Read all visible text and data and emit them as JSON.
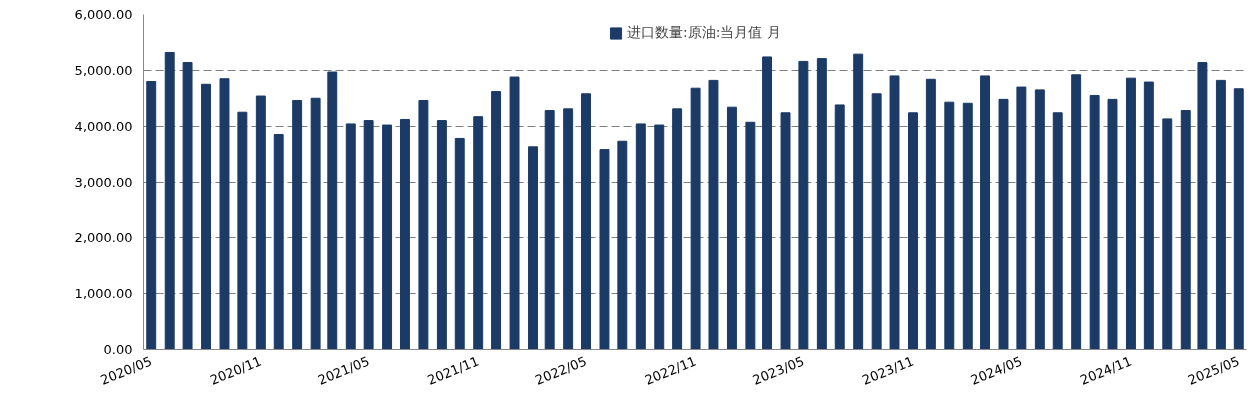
{
  "chart_data": {
    "type": "bar",
    "x": [
      "2020-05",
      "2020-06",
      "2020-07",
      "2020-08",
      "2020-09",
      "2020-10",
      "2020-11",
      "2020-12",
      "2021-01",
      "2021-02",
      "2021-03",
      "2021-04",
      "2021-05",
      "2021-06",
      "2021-07",
      "2021-08",
      "2021-09",
      "2021-10",
      "2021-11",
      "2021-12",
      "2022-01",
      "2022-02",
      "2022-03",
      "2022-04",
      "2022-05",
      "2022-06",
      "2022-07",
      "2022-08",
      "2022-09",
      "2022-10",
      "2022-11",
      "2022-12",
      "2023-01",
      "2023-02",
      "2023-03",
      "2023-04",
      "2023-05",
      "2023-06",
      "2023-07",
      "2023-08",
      "2023-09",
      "2023-10",
      "2023-11",
      "2023-12",
      "2024-01",
      "2024-02",
      "2024-03",
      "2024-04",
      "2024-05",
      "2024-06",
      "2024-07",
      "2024-08",
      "2024-09",
      "2024-10",
      "2024-11",
      "2024-12",
      "2025-01",
      "2025-02",
      "2025-03",
      "2025-04",
      "2025-05"
    ],
    "series": [
      {
        "name": "进口数量:原油:当月值 月",
        "color": "#1b3a66",
        "values": [
          4800,
          5320,
          5140,
          4750,
          4850,
          4250,
          4540,
          3850,
          4460,
          4500,
          4970,
          4040,
          4100,
          4020,
          4120,
          4460,
          4100,
          3780,
          4170,
          4620,
          4880,
          3630,
          4280,
          4310,
          4580,
          3580,
          3730,
          4040,
          4020,
          4310,
          4680,
          4820,
          4340,
          4070,
          5240,
          4240,
          5160,
          5210,
          4380,
          5290,
          4580,
          4900,
          4240,
          4840,
          4430,
          4410,
          4900,
          4480,
          4700,
          4650,
          4240,
          4920,
          4550,
          4480,
          4860,
          4790,
          4130,
          4280,
          5140,
          4820,
          4670
        ]
      }
    ],
    "ylim": [
      0,
      6000
    ],
    "yticks": [
      {
        "value": 0,
        "label": "0.00"
      },
      {
        "value": 1000,
        "label": "1,000.00"
      },
      {
        "value": 2000,
        "label": "2,000.00"
      },
      {
        "value": 3000,
        "label": "3,000.00"
      },
      {
        "value": 4000,
        "label": "4,000.00"
      },
      {
        "value": 5000,
        "label": "5,000.00"
      },
      {
        "value": 6000,
        "label": "6,000.00"
      }
    ],
    "xlim": [
      "2020-04-18",
      "2025-05-14"
    ],
    "xticks": [
      {
        "value": "2020-05-01",
        "label": "2020/05"
      },
      {
        "value": "2020-11-01",
        "label": "2020/11"
      },
      {
        "value": "2021-05-01",
        "label": "2021/05"
      },
      {
        "value": "2021-11-01",
        "label": "2021/11"
      },
      {
        "value": "2022-05-01",
        "label": "2022/05"
      },
      {
        "value": "2022-11-01",
        "label": "2022/11"
      },
      {
        "value": "2023-05-01",
        "label": "2023/05"
      },
      {
        "value": "2023-11-01",
        "label": "2023/11"
      },
      {
        "value": "2024-05-01",
        "label": "2024/05"
      },
      {
        "value": "2024-11-01",
        "label": "2024/11"
      },
      {
        "value": "2025-05-01",
        "label": "2025/05"
      }
    ],
    "grid": "y",
    "legend": "top"
  }
}
